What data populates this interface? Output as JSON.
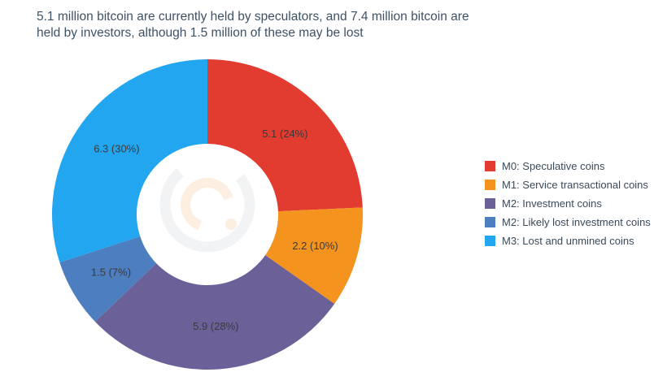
{
  "chart_data": {
    "type": "pie",
    "donut": true,
    "title": "5.1 million bitcoin are currently held by speculators, and 7.4 million bitcoin are held by investors, although 1.5 million of these may be lost",
    "legend_position": "right",
    "grid": false,
    "slices": [
      {
        "label": "M0: Speculative coins",
        "value": 5.1,
        "percent": 24,
        "display": "5.1 (24%)",
        "color": "#e23b2f"
      },
      {
        "label": "M1: Service transactional coins",
        "value": 2.2,
        "percent": 10,
        "display": "2.2 (10%)",
        "color": "#f5931f"
      },
      {
        "label": "M2: Investment coins",
        "value": 5.9,
        "percent": 28,
        "display": "5.9 (28%)",
        "color": "#6b6198"
      },
      {
        "label": "M2: Likely lost investment coins",
        "value": 1.5,
        "percent": 7,
        "display": "1.5 (7%)",
        "color": "#4c7ec0"
      },
      {
        "label": "M3: Lost and unmined coins",
        "value": 6.3,
        "percent": 30,
        "display": "6.3 (30%)",
        "color": "#23a6f0"
      }
    ]
  },
  "watermark": {
    "name": "center-logo-watermark"
  }
}
